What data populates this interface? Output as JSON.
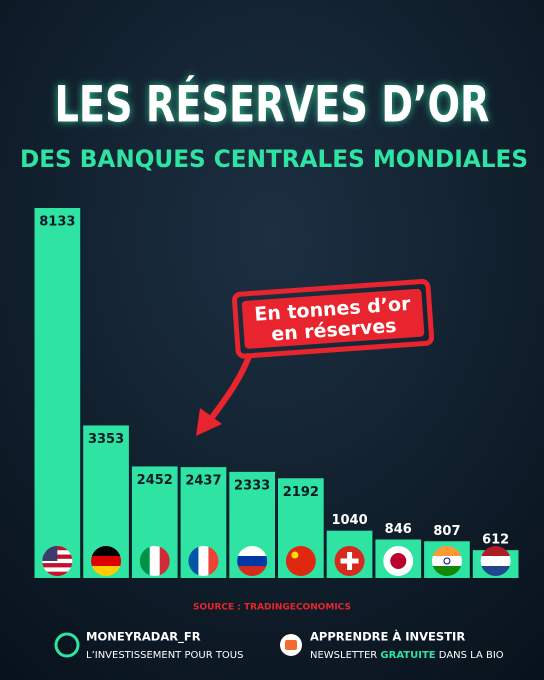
{
  "chart_data": {
    "type": "bar",
    "title": "LES RÉSERVES D’OR",
    "subtitle": "DES BANQUES CENTRALES MONDIALES",
    "annotation": [
      "En tonnes d’or",
      "en réserves"
    ],
    "categories": [
      null,
      null,
      null,
      null,
      null,
      null,
      null,
      null,
      null,
      null
    ],
    "values": [
      8133,
      3353,
      2452,
      2437,
      2333,
      2192,
      1040,
      846,
      807,
      612
    ],
    "color": "#2fe3a2",
    "source": "SOURCE : TRADINGECONOMICS"
  },
  "footer": {
    "left": {
      "title": "MONEYRADAR_FR",
      "subtitle": "L’INVESTISSEMENT POUR TOUS"
    },
    "right": {
      "title": "APPRENDRE À INVESTIR",
      "subtitle": [
        "NEWSLETTER",
        "GRATUITE",
        "DANS LA BIO"
      ]
    }
  }
}
